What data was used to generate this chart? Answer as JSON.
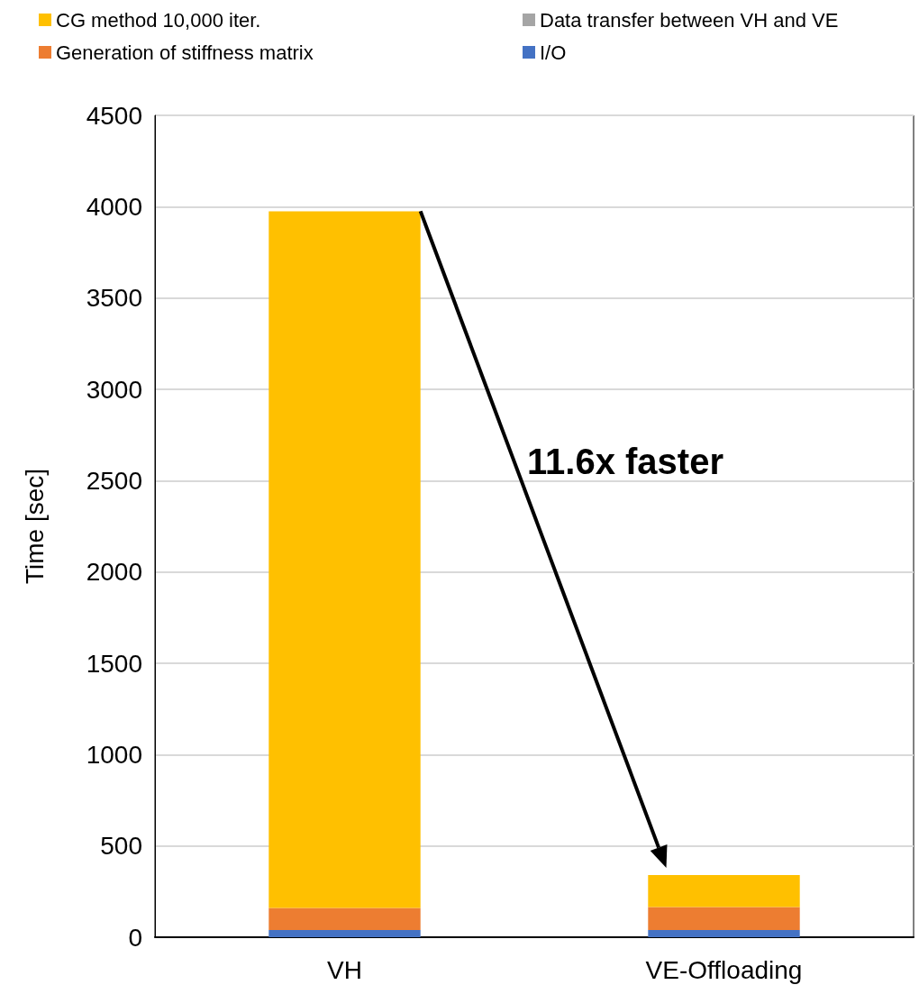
{
  "chart_data": {
    "type": "bar",
    "stacked": true,
    "ylabel": "Time [sec]",
    "categories": [
      "VH",
      "VE-Offloading"
    ],
    "series": [
      {
        "name": "I/O",
        "color": "#4472c4",
        "values": [
          40,
          40
        ]
      },
      {
        "name": "Generation of stiffness matrix",
        "color": "#ed7d31",
        "values": [
          120,
          125
        ]
      },
      {
        "name": "Data transfer between VH and VE",
        "color": "#a5a5a5",
        "values": [
          0,
          0
        ]
      },
      {
        "name": "CG method 10,000 iter.",
        "color": "#ffc000",
        "values": [
          3815,
          175
        ]
      }
    ],
    "ylim": [
      0,
      4500
    ],
    "yticks": [
      0,
      500,
      1000,
      1500,
      2000,
      2500,
      3000,
      3500,
      4000,
      4500
    ],
    "grid": "y",
    "legend": "top",
    "annotations": [
      "11.6x faster"
    ]
  }
}
